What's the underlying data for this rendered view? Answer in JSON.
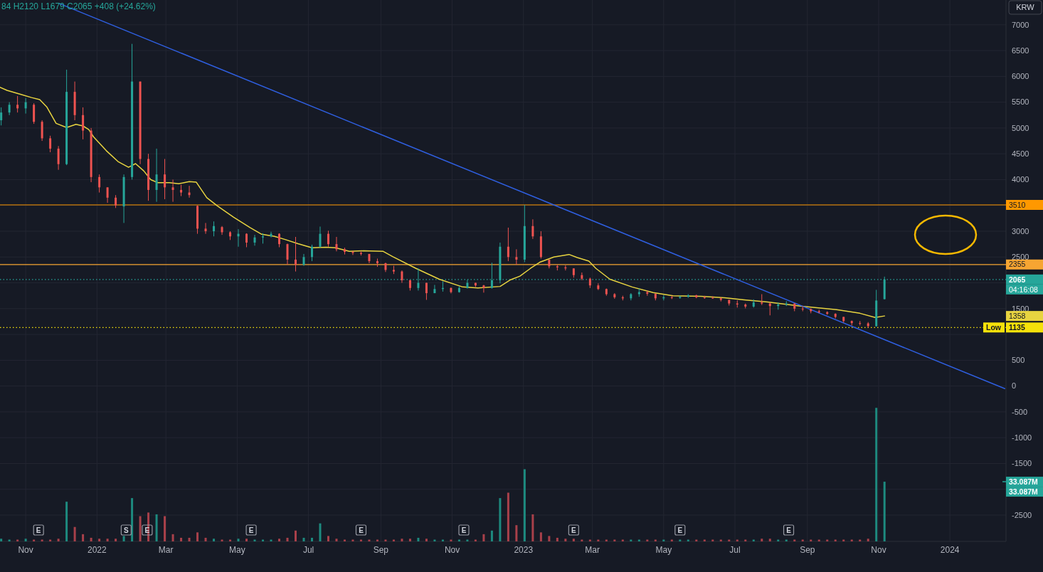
{
  "chart_data": {
    "type": "candlestick",
    "title": "84 H2120 L1679 C2065 +408 (+24.62%)",
    "ylabel": "KRW",
    "x": [
      "2021-10-11",
      "2021-10-18",
      "2021-10-25",
      "2021-11-01",
      "2021-11-08",
      "2021-11-15",
      "2021-11-22",
      "2021-11-29",
      "2021-12-06",
      "2021-12-13",
      "2021-12-20",
      "2021-12-27",
      "2022-01-03",
      "2022-01-10",
      "2022-01-17",
      "2022-01-24",
      "2022-01-31",
      "2022-02-07",
      "2022-02-14",
      "2022-02-21",
      "2022-02-28",
      "2022-03-07",
      "2022-03-14",
      "2022-03-21",
      "2022-03-28",
      "2022-04-04",
      "2022-04-11",
      "2022-04-18",
      "2022-04-25",
      "2022-05-02",
      "2022-05-09",
      "2022-05-16",
      "2022-05-23",
      "2022-05-30",
      "2022-06-06",
      "2022-06-13",
      "2022-06-20",
      "2022-06-27",
      "2022-07-04",
      "2022-07-11",
      "2022-07-18",
      "2022-07-25",
      "2022-08-01",
      "2022-08-08",
      "2022-08-15",
      "2022-08-22",
      "2022-08-29",
      "2022-09-05",
      "2022-09-12",
      "2022-09-19",
      "2022-09-26",
      "2022-10-03",
      "2022-10-10",
      "2022-10-17",
      "2022-10-24",
      "2022-10-31",
      "2022-11-07",
      "2022-11-14",
      "2022-11-21",
      "2022-11-28",
      "2022-12-05",
      "2022-12-12",
      "2022-12-19",
      "2022-12-26",
      "2023-01-02",
      "2023-01-09",
      "2023-01-16",
      "2023-01-23",
      "2023-01-30",
      "2023-02-06",
      "2023-02-13",
      "2023-02-20",
      "2023-02-27",
      "2023-03-06",
      "2023-03-13",
      "2023-03-20",
      "2023-03-27",
      "2023-04-03",
      "2023-04-10",
      "2023-04-17",
      "2023-04-24",
      "2023-05-01",
      "2023-05-08",
      "2023-05-15",
      "2023-05-22",
      "2023-05-29",
      "2023-06-05",
      "2023-06-12",
      "2023-06-19",
      "2023-06-26",
      "2023-07-03",
      "2023-07-10",
      "2023-07-17",
      "2023-07-24",
      "2023-07-31",
      "2023-08-07",
      "2023-08-14",
      "2023-08-21",
      "2023-08-28",
      "2023-09-04",
      "2023-09-11",
      "2023-09-18",
      "2023-09-25",
      "2023-10-02",
      "2023-10-09",
      "2023-10-16",
      "2023-10-23",
      "2023-10-30",
      "2023-11-06"
    ],
    "ohlc": [
      [
        5150,
        5400,
        5050,
        5300
      ],
      [
        5300,
        5500,
        5250,
        5450
      ],
      [
        5450,
        5620,
        5300,
        5380
      ],
      [
        5380,
        5580,
        5280,
        5500
      ],
      [
        5450,
        5480,
        5080,
        5120
      ],
      [
        5120,
        5150,
        4750,
        4800
      ],
      [
        4800,
        4850,
        4530,
        4600
      ],
      [
        4600,
        4650,
        4190,
        4300
      ],
      [
        4300,
        6130,
        4280,
        5700
      ],
      [
        5700,
        5900,
        5150,
        5250
      ],
      [
        5250,
        5400,
        4780,
        4950
      ],
      [
        4950,
        5000,
        3950,
        4050
      ],
      [
        4050,
        4100,
        3750,
        3850
      ],
      [
        3850,
        3850,
        3550,
        3650
      ],
      [
        3650,
        3700,
        3450,
        3500
      ],
      [
        3480,
        4100,
        3160,
        4050
      ],
      [
        4050,
        6630,
        4000,
        5900
      ],
      [
        5900,
        5900,
        4300,
        4400
      ],
      [
        4400,
        4500,
        3590,
        3800
      ],
      [
        3800,
        4600,
        3570,
        4100
      ],
      [
        4100,
        4400,
        3620,
        3850
      ],
      [
        3850,
        4000,
        3570,
        3800
      ],
      [
        3800,
        3900,
        3680,
        3750
      ],
      [
        3750,
        3880,
        3650,
        3700
      ],
      [
        3490,
        3500,
        2950,
        3050
      ],
      [
        3050,
        3160,
        2950,
        3000
      ],
      [
        3000,
        3190,
        2900,
        3100
      ],
      [
        3080,
        3100,
        2930,
        2980
      ],
      [
        2980,
        3000,
        2830,
        2900
      ],
      [
        2900,
        3040,
        2700,
        2950
      ],
      [
        2950,
        2960,
        2690,
        2780
      ],
      [
        2780,
        2930,
        2720,
        2880
      ],
      [
        2880,
        2960,
        2760,
        2900
      ],
      [
        2900,
        2990,
        2880,
        2950
      ],
      [
        2950,
        2960,
        2690,
        2750
      ],
      [
        2750,
        2760,
        2350,
        2450
      ],
      [
        2450,
        2890,
        2220,
        2350
      ],
      [
        2350,
        2560,
        2330,
        2500
      ],
      [
        2500,
        2740,
        2420,
        2700
      ],
      [
        2700,
        3090,
        2680,
        2950
      ],
      [
        2950,
        3010,
        2700,
        2750
      ],
      [
        2750,
        2890,
        2610,
        2650
      ],
      [
        2650,
        2680,
        2550,
        2600
      ],
      [
        2600,
        2620,
        2540,
        2580
      ],
      [
        2580,
        2610,
        2530,
        2560
      ],
      [
        2560,
        2560,
        2380,
        2420
      ],
      [
        2420,
        2470,
        2310,
        2380
      ],
      [
        2380,
        2390,
        2210,
        2250
      ],
      [
        2250,
        2330,
        2170,
        2220
      ],
      [
        2220,
        2240,
        2000,
        2050
      ],
      [
        2050,
        2060,
        1850,
        1900
      ],
      [
        1900,
        2280,
        1850,
        2000
      ],
      [
        2000,
        2000,
        1670,
        1800
      ],
      [
        1800,
        1960,
        1800,
        1880
      ],
      [
        1880,
        2030,
        1830,
        1900
      ],
      [
        1900,
        1910,
        1795,
        1820
      ],
      [
        1820,
        1935,
        1810,
        1900
      ],
      [
        1900,
        2060,
        1890,
        2000
      ],
      [
        2000,
        2000,
        1920,
        1950
      ],
      [
        1950,
        1960,
        1810,
        1900
      ],
      [
        1900,
        2390,
        1890,
        2050
      ],
      [
        2050,
        2780,
        1990,
        2700
      ],
      [
        2700,
        3070,
        2420,
        2500
      ],
      [
        2500,
        2650,
        2350,
        2450
      ],
      [
        2450,
        3510,
        2400,
        3100
      ],
      [
        3100,
        3230,
        2850,
        2900
      ],
      [
        2900,
        3000,
        2470,
        2500
      ],
      [
        2450,
        2450,
        2280,
        2320
      ],
      [
        2320,
        2350,
        2240,
        2300
      ],
      [
        2300,
        2340,
        2240,
        2280
      ],
      [
        2280,
        2280,
        2100,
        2150
      ],
      [
        2150,
        2200,
        2050,
        2080
      ],
      [
        2080,
        2100,
        1900,
        1950
      ],
      [
        1950,
        1990,
        1860,
        1880
      ],
      [
        1880,
        1890,
        1750,
        1780
      ],
      [
        1780,
        1800,
        1690,
        1720
      ],
      [
        1720,
        1750,
        1660,
        1700
      ],
      [
        1700,
        1800,
        1660,
        1780
      ],
      [
        1780,
        1890,
        1730,
        1820
      ],
      [
        1820,
        1850,
        1750,
        1790
      ],
      [
        1790,
        1790,
        1660,
        1700
      ],
      [
        1700,
        1760,
        1660,
        1720
      ],
      [
        1720,
        1750,
        1685,
        1710
      ],
      [
        1710,
        1750,
        1690,
        1730
      ],
      [
        1730,
        1780,
        1710,
        1760
      ],
      [
        1760,
        1770,
        1700,
        1720
      ],
      [
        1720,
        1750,
        1690,
        1710
      ],
      [
        1710,
        1740,
        1690,
        1700
      ],
      [
        1700,
        1715,
        1640,
        1670
      ],
      [
        1670,
        1670,
        1560,
        1600
      ],
      [
        1600,
        1660,
        1520,
        1580
      ],
      [
        1580,
        1600,
        1505,
        1540
      ],
      [
        1540,
        1680,
        1520,
        1620
      ],
      [
        1620,
        1780,
        1570,
        1600
      ],
      [
        1600,
        1620,
        1370,
        1550
      ],
      [
        1550,
        1620,
        1480,
        1580
      ],
      [
        1580,
        1645,
        1550,
        1600
      ],
      [
        1600,
        1600,
        1450,
        1500
      ],
      [
        1500,
        1550,
        1450,
        1490
      ],
      [
        1490,
        1505,
        1410,
        1450
      ],
      [
        1450,
        1480,
        1410,
        1430
      ],
      [
        1430,
        1450,
        1380,
        1400
      ],
      [
        1400,
        1410,
        1310,
        1340
      ],
      [
        1340,
        1340,
        1230,
        1260
      ],
      [
        1260,
        1270,
        1175,
        1220
      ],
      [
        1220,
        1260,
        1175,
        1215
      ],
      [
        1215,
        1240,
        1135,
        1160
      ],
      [
        1160,
        1864,
        1150,
        1657
      ],
      [
        1684,
        2120,
        1679,
        2065
      ]
    ],
    "colors": [
      "#26a69a",
      "#26a69a",
      "#ef5350",
      "#26a69a",
      "#ef5350",
      "#ef5350",
      "#ef5350",
      "#ef5350",
      "#26a69a",
      "#ef5350",
      "#ef5350",
      "#ef5350",
      "#ef5350",
      "#ef5350",
      "#ef5350",
      "#26a69a",
      "#26a69a",
      "#ef5350",
      "#ef5350",
      "#26a69a",
      "#ef5350",
      "#ef5350",
      "#ef5350",
      "#ef5350",
      "#ef5350",
      "#ef5350",
      "#26a69a",
      "#ef5350",
      "#ef5350",
      "#26a69a",
      "#ef5350",
      "#26a69a",
      "#26a69a",
      "#26a69a",
      "#ef5350",
      "#ef5350",
      "#ef5350",
      "#26a69a",
      "#26a69a",
      "#26a69a",
      "#ef5350",
      "#ef5350",
      "#ef5350",
      "#ef5350",
      "#ef5350",
      "#ef5350",
      "#ef5350",
      "#ef5350",
      "#ef5350",
      "#ef5350",
      "#ef5350",
      "#26a69a",
      "#ef5350",
      "#26a69a",
      "#26a69a",
      "#ef5350",
      "#26a69a",
      "#26a69a",
      "#ef5350",
      "#ef5350",
      "#26a69a",
      "#26a69a",
      "#ef5350",
      "#ef5350",
      "#26a69a",
      "#ef5350",
      "#ef5350",
      "#ef5350",
      "#ef5350",
      "#ef5350",
      "#ef5350",
      "#ef5350",
      "#ef5350",
      "#ef5350",
      "#ef5350",
      "#ef5350",
      "#ef5350",
      "#26a69a",
      "#26a69a",
      "#ef5350",
      "#ef5350",
      "#26a69a",
      "#ef5350",
      "#26a69a",
      "#26a69a",
      "#ef5350",
      "#ef5350",
      "#ef5350",
      "#ef5350",
      "#ef5350",
      "#ef5350",
      "#ef5350",
      "#26a69a",
      "#ef5350",
      "#ef5350",
      "#26a69a",
      "#26a69a",
      "#ef5350",
      "#ef5350",
      "#ef5350",
      "#ef5350",
      "#ef5350",
      "#ef5350",
      "#ef5350",
      "#ef5350",
      "#ef5350",
      "#ef5350",
      "#26a69a",
      "#26a69a"
    ],
    "series": [
      {
        "type": "bar",
        "axis": "y2",
        "values": [
          1.5,
          1,
          1,
          1.5,
          1,
          1,
          1,
          1.5,
          22,
          8,
          4,
          2,
          1.5,
          1.5,
          1.5,
          3,
          24,
          14,
          16,
          15,
          14,
          4,
          2,
          2,
          5,
          2,
          1.5,
          1,
          1,
          1.5,
          1.5,
          1,
          1,
          1,
          1.5,
          2,
          6,
          2,
          2,
          10,
          3,
          1.5,
          1,
          1,
          1,
          1,
          1,
          1,
          1,
          1.5,
          1.5,
          2,
          1.5,
          1,
          1,
          1,
          1,
          1,
          1,
          4,
          6,
          24,
          27,
          9,
          40,
          15,
          5,
          3,
          2,
          1.5,
          1.5,
          1,
          1,
          1,
          1,
          1,
          1,
          1,
          1,
          1,
          1,
          1,
          1,
          1,
          1,
          1,
          1,
          1,
          1,
          1,
          1,
          1,
          1,
          1.5,
          1.5,
          1,
          1,
          1,
          1,
          1,
          1,
          1,
          1,
          1,
          1,
          1,
          1.5,
          74,
          33.087
        ],
        "colors": [
          "#1d8a7f",
          "#1d8a7f",
          "#a8404a",
          "#1d8a7f",
          "#a8404a",
          "#a8404a",
          "#a8404a",
          "#a8404a",
          "#1d8a7f",
          "#a8404a",
          "#a8404a",
          "#a8404a",
          "#a8404a",
          "#a8404a",
          "#a8404a",
          "#1d8a7f",
          "#1d8a7f",
          "#a8404a",
          "#a8404a",
          "#1d8a7f",
          "#a8404a",
          "#a8404a",
          "#a8404a",
          "#a8404a",
          "#a8404a",
          "#a8404a",
          "#1d8a7f",
          "#a8404a",
          "#a8404a",
          "#1d8a7f",
          "#a8404a",
          "#1d8a7f",
          "#1d8a7f",
          "#1d8a7f",
          "#a8404a",
          "#a8404a",
          "#a8404a",
          "#1d8a7f",
          "#1d8a7f",
          "#1d8a7f",
          "#a8404a",
          "#a8404a",
          "#a8404a",
          "#a8404a",
          "#a8404a",
          "#a8404a",
          "#a8404a",
          "#a8404a",
          "#a8404a",
          "#a8404a",
          "#a8404a",
          "#1d8a7f",
          "#a8404a",
          "#1d8a7f",
          "#1d8a7f",
          "#a8404a",
          "#1d8a7f",
          "#1d8a7f",
          "#a8404a",
          "#a8404a",
          "#1d8a7f",
          "#1d8a7f",
          "#a8404a",
          "#a8404a",
          "#1d8a7f",
          "#a8404a",
          "#a8404a",
          "#a8404a",
          "#a8404a",
          "#a8404a",
          "#a8404a",
          "#a8404a",
          "#a8404a",
          "#a8404a",
          "#a8404a",
          "#a8404a",
          "#a8404a",
          "#1d8a7f",
          "#1d8a7f",
          "#a8404a",
          "#a8404a",
          "#1d8a7f",
          "#a8404a",
          "#1d8a7f",
          "#1d8a7f",
          "#a8404a",
          "#a8404a",
          "#a8404a",
          "#a8404a",
          "#a8404a",
          "#a8404a",
          "#a8404a",
          "#1d8a7f",
          "#a8404a",
          "#a8404a",
          "#1d8a7f",
          "#1d8a7f",
          "#a8404a",
          "#a8404a",
          "#a8404a",
          "#a8404a",
          "#a8404a",
          "#a8404a",
          "#a8404a",
          "#a8404a",
          "#a8404a",
          "#a8404a",
          "#1d8a7f",
          "#1d8a7f"
        ]
      },
      {
        "type": "line",
        "color": "#e8d440",
        "x": [
          "2021-10-10",
          "2021-10-16",
          "2021-10-28",
          "2021-11-06",
          "2021-11-13",
          "2021-11-19",
          "2021-11-27",
          "2021-12-06",
          "2021-12-14",
          "2021-12-20",
          "2021-12-25",
          "2021-12-29",
          "2022-01-09",
          "2022-01-19",
          "2022-01-28",
          "2022-02-03",
          "2022-02-10",
          "2022-02-16",
          "2022-02-22",
          "2022-03-04",
          "2022-03-12",
          "2022-03-21",
          "2022-03-27",
          "2022-03-30",
          "2022-04-05",
          "2022-04-14",
          "2022-04-28",
          "2022-05-12",
          "2022-05-22",
          "2022-06-02",
          "2022-06-11",
          "2022-06-22",
          "2022-07-04",
          "2022-07-16",
          "2022-07-24",
          "2022-08-05",
          "2022-08-17",
          "2022-09-03",
          "2022-09-11",
          "2022-10-01",
          "2022-10-21",
          "2022-11-10",
          "2022-11-23",
          "2022-12-12",
          "2022-12-21",
          "2022-12-29",
          "2023-01-07",
          "2023-01-15",
          "2023-01-27",
          "2023-02-09",
          "2023-02-16",
          "2023-02-26",
          "2023-03-04",
          "2023-03-16",
          "2023-04-04",
          "2023-04-22",
          "2023-05-09",
          "2023-06-02",
          "2023-06-22",
          "2023-07-09",
          "2023-07-29",
          "2023-08-26",
          "2023-09-26",
          "2023-10-16",
          "2023-10-29",
          "2023-11-06"
        ],
        "values": [
          5790,
          5730,
          5650,
          5590,
          5550,
          5410,
          5090,
          5010,
          5070,
          5040,
          4970,
          4830,
          4560,
          4350,
          4240,
          4310,
          4170,
          4000,
          3940,
          3940,
          3920,
          3960,
          3950,
          3850,
          3650,
          3490,
          3270,
          3070,
          2940,
          2900,
          2840,
          2760,
          2680,
          2690,
          2680,
          2610,
          2620,
          2610,
          2510,
          2280,
          2070,
          1920,
          1900,
          1930,
          2060,
          2130,
          2280,
          2400,
          2500,
          2550,
          2490,
          2420,
          2280,
          2070,
          1920,
          1810,
          1750,
          1740,
          1710,
          1670,
          1630,
          1550,
          1480,
          1410,
          1330,
          1358
        ]
      },
      {
        "type": "line",
        "color": "#2f5fe0",
        "x": [
          "2021-11-30",
          "2024-02-17"
        ],
        "values": [
          7410,
          -50
        ]
      }
    ],
    "xlim": [
      "2021-10-10",
      "2024-02-18"
    ],
    "ylim": [
      -3010,
      7480
    ],
    "y2lim": [
      0,
      300
    ],
    "xticks": [
      {
        "value": "2021-11-01",
        "label": "Nov"
      },
      {
        "value": "2022-01-01",
        "label": "2022"
      },
      {
        "value": "2022-03-01",
        "label": "Mar"
      },
      {
        "value": "2022-05-01",
        "label": "May"
      },
      {
        "value": "2022-07-01",
        "label": "Jul"
      },
      {
        "value": "2022-09-01",
        "label": "Sep"
      },
      {
        "value": "2022-11-01",
        "label": "Nov"
      },
      {
        "value": "2023-01-01",
        "label": "2023"
      },
      {
        "value": "2023-03-01",
        "label": "Mar"
      },
      {
        "value": "2023-05-01",
        "label": "May"
      },
      {
        "value": "2023-07-01",
        "label": "Jul"
      },
      {
        "value": "2023-09-01",
        "label": "Sep"
      },
      {
        "value": "2023-11-01",
        "label": "Nov"
      },
      {
        "value": "2024-01-01",
        "label": "2024"
      }
    ],
    "yticks": [
      7000,
      6500,
      6000,
      5500,
      5000,
      4500,
      4000,
      {
        "value": 3500,
        "label": null
      },
      3000,
      2500,
      {
        "value": 2000,
        "label": null
      },
      1500,
      {
        "value": 1000,
        "label": null
      },
      500,
      0,
      -500,
      -1000,
      -1500,
      {
        "value": -2000,
        "label": null
      },
      -2500
    ],
    "y2ticks": [
      {
        "value": 33.087,
        "label": "33.087M"
      }
    ],
    "grid": true,
    "ref_lines": [
      {
        "axis": "y",
        "value": 3510,
        "label": "3510",
        "color": "#ff9800"
      },
      {
        "axis": "y",
        "value": 2355,
        "label": "2355",
        "color": "#f7a532"
      },
      {
        "axis": "y",
        "value": 2065,
        "label": "2065",
        "color": "#26a69a",
        "line_style": "dotted"
      },
      {
        "axis": "y",
        "value": 1135,
        "label": "Low 1135",
        "color": "#f5e10a",
        "line_style": "dotted"
      }
    ],
    "annotations": [
      "04:16:08",
      "1358",
      "33.087M",
      {
        "text": "E",
        "x": "2021-11-12"
      },
      {
        "text": "S",
        "x": "2022-01-26"
      },
      {
        "text": "E",
        "x": "2022-02-13"
      },
      {
        "text": "E",
        "x": "2022-05-13"
      },
      {
        "text": "E",
        "x": "2022-08-15"
      },
      {
        "text": "E",
        "x": "2022-11-11"
      },
      {
        "text": "E",
        "x": "2023-02-13"
      },
      {
        "text": "E",
        "x": "2023-05-15"
      },
      {
        "text": "E",
        "x": "2023-08-16"
      }
    ]
  }
}
